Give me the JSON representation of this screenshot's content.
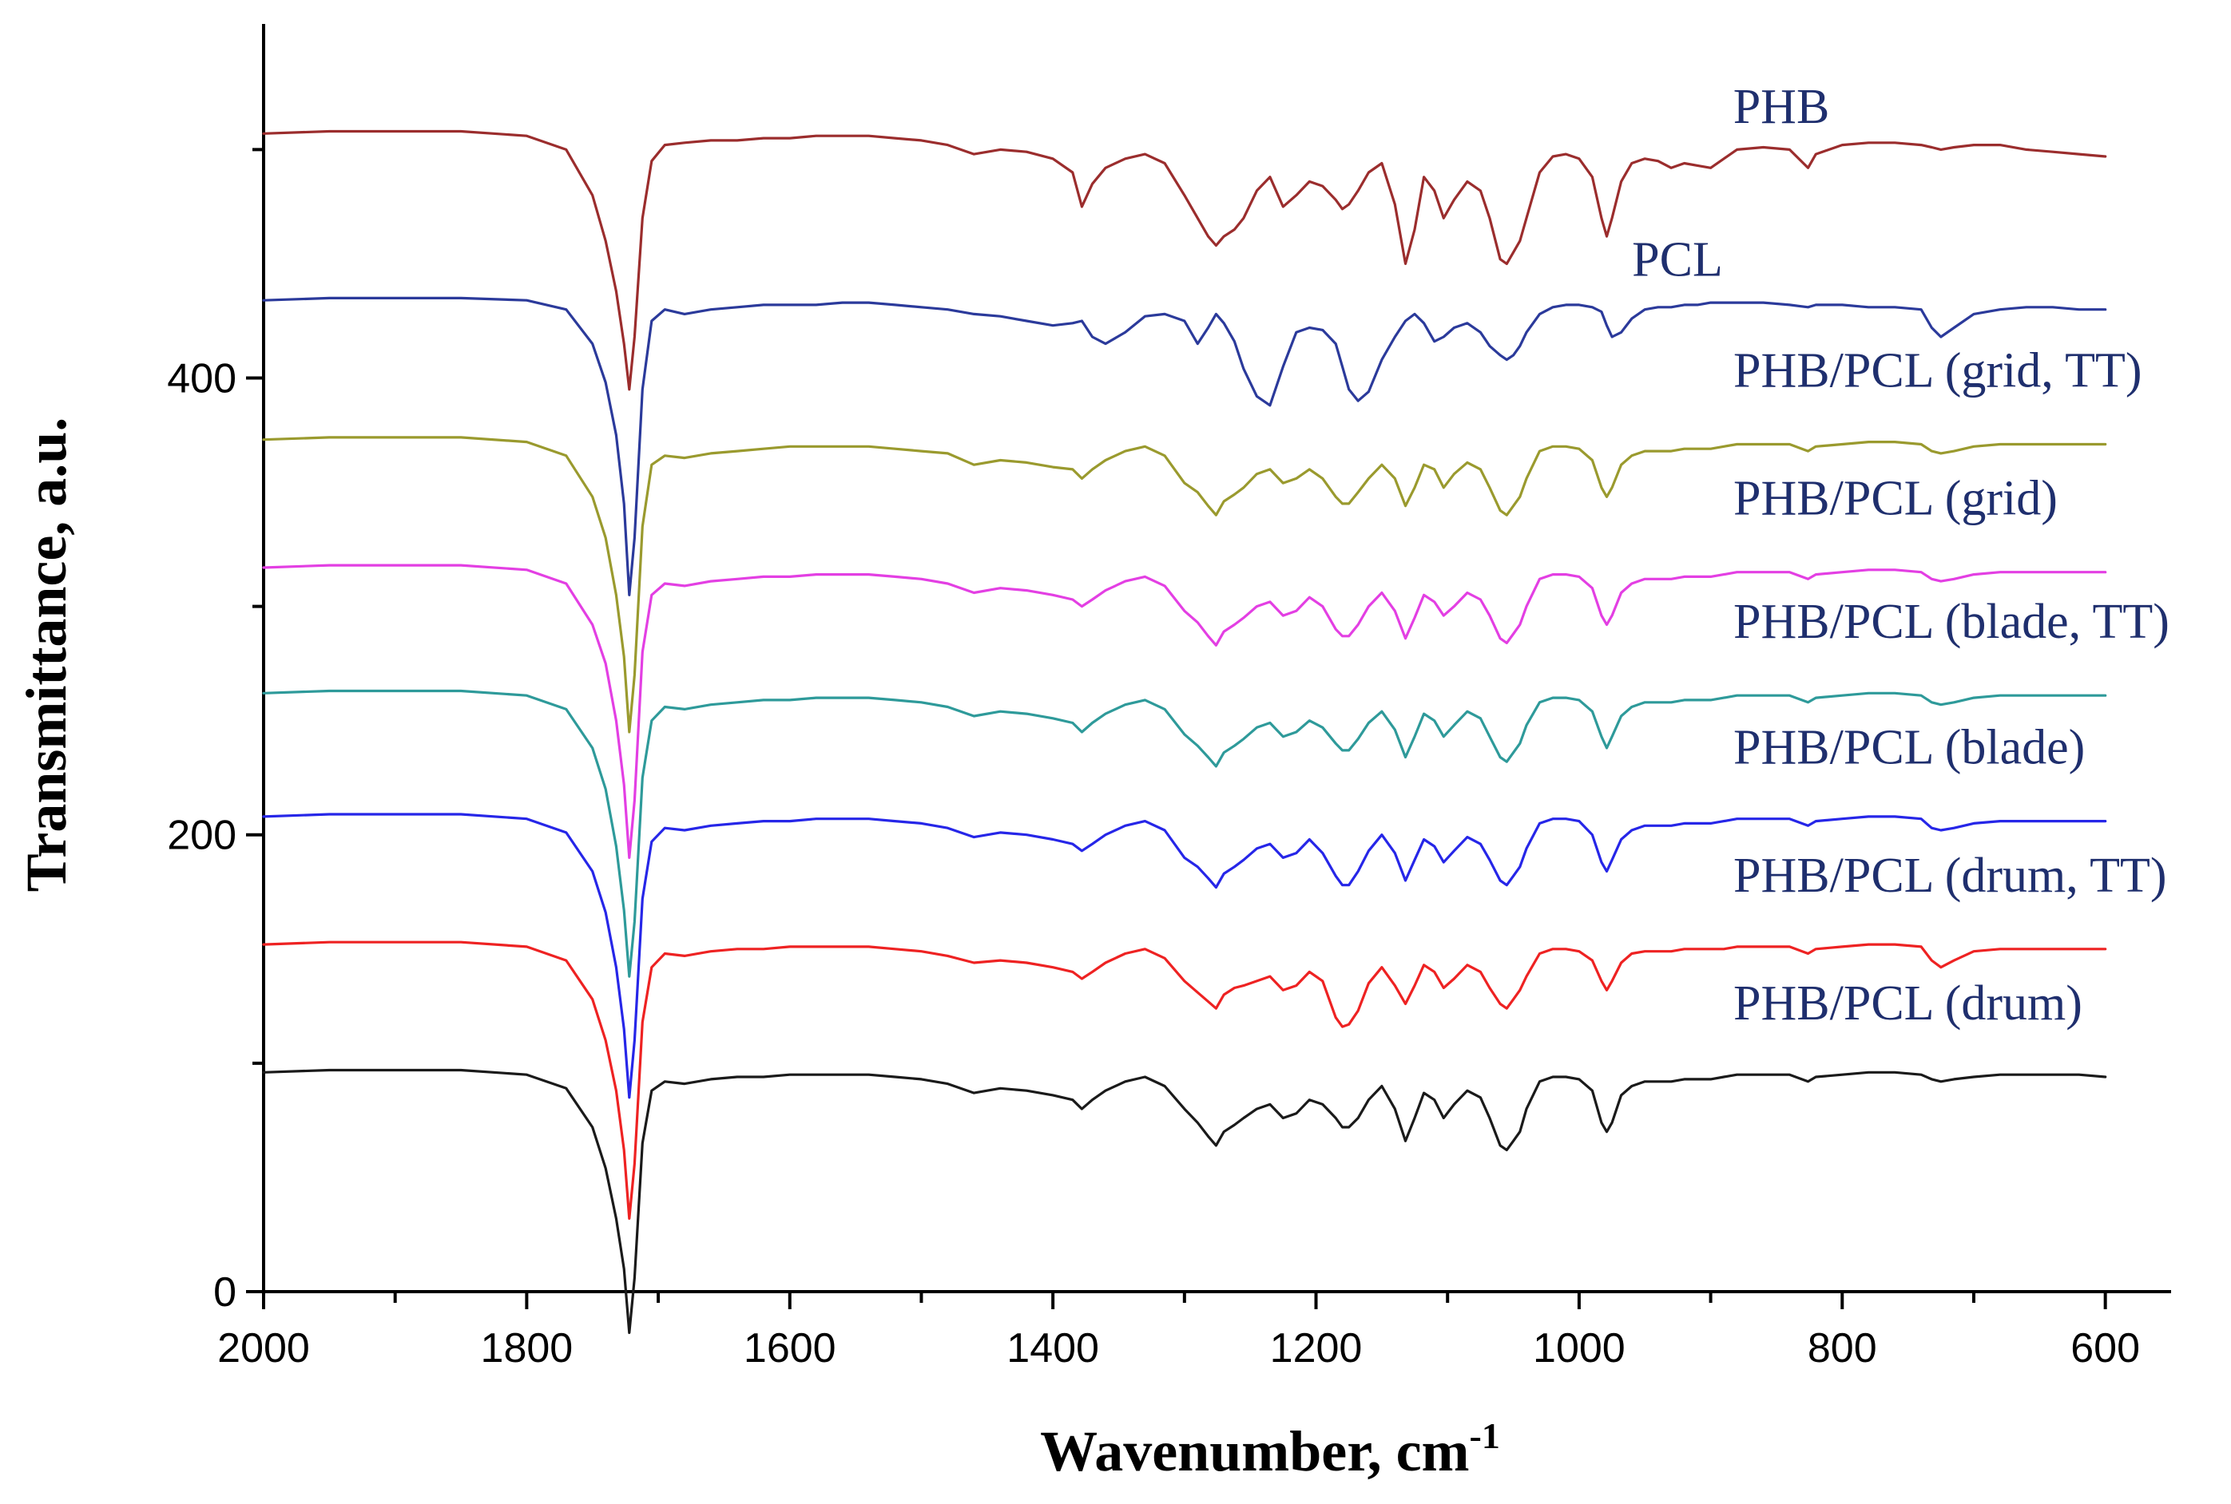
{
  "chart_data": {
    "type": "line",
    "title": "",
    "xlabel": "Wavenumber, cm",
    "xlabel_superscript": "-1",
    "ylabel": "Transmittance,  a.u.",
    "xlim": [
      2000,
      550
    ],
    "ylim": [
      0,
      555
    ],
    "x_ticks": [
      2000,
      1800,
      1600,
      1400,
      1200,
      1000,
      800,
      600
    ],
    "y_ticks": [
      0,
      200,
      400
    ],
    "x": [
      2000,
      1950,
      1900,
      1850,
      1800,
      1770,
      1750,
      1740,
      1732,
      1726,
      1722,
      1718,
      1712,
      1705,
      1695,
      1680,
      1660,
      1640,
      1620,
      1600,
      1580,
      1560,
      1540,
      1520,
      1500,
      1480,
      1460,
      1440,
      1420,
      1400,
      1385,
      1378,
      1370,
      1360,
      1345,
      1330,
      1315,
      1300,
      1290,
      1282,
      1276,
      1270,
      1262,
      1255,
      1245,
      1235,
      1225,
      1215,
      1205,
      1195,
      1185,
      1180,
      1175,
      1168,
      1160,
      1150,
      1140,
      1132,
      1125,
      1118,
      1110,
      1103,
      1095,
      1085,
      1075,
      1068,
      1060,
      1055,
      1050,
      1045,
      1040,
      1030,
      1020,
      1010,
      1000,
      990,
      983,
      979,
      975,
      968,
      960,
      950,
      940,
      930,
      920,
      910,
      900,
      890,
      880,
      860,
      840,
      826,
      820,
      800,
      780,
      760,
      740,
      732,
      725,
      715,
      700,
      680,
      660,
      640,
      620,
      600
    ],
    "series": [
      {
        "name": "PHB",
        "label": "PHB",
        "color": "#9b2d2d",
        "values": [
          507,
          508,
          508,
          508,
          506,
          500,
          480,
          460,
          438,
          415,
          395,
          418,
          470,
          495,
          502,
          503,
          504,
          504,
          505,
          505,
          506,
          506,
          506,
          505,
          504,
          502,
          498,
          500,
          499,
          496,
          490,
          475,
          485,
          492,
          496,
          498,
          494,
          480,
          470,
          462,
          458,
          462,
          465,
          470,
          482,
          488,
          475,
          480,
          486,
          484,
          478,
          474,
          476,
          482,
          490,
          494,
          476,
          450,
          465,
          488,
          482,
          470,
          478,
          486,
          482,
          470,
          452,
          450,
          455,
          460,
          470,
          490,
          497,
          498,
          496,
          488,
          470,
          462,
          470,
          486,
          494,
          496,
          495,
          492,
          494,
          493,
          492,
          496,
          500,
          501,
          500,
          492,
          498,
          502,
          503,
          503,
          502,
          501,
          500,
          501,
          502,
          502,
          500,
          499,
          498,
          497
        ]
      },
      {
        "name": "PCL",
        "label": "PCL",
        "color": "#2b3a9b",
        "values": [
          434,
          435,
          435,
          435,
          434,
          430,
          415,
          398,
          375,
          345,
          305,
          330,
          395,
          425,
          430,
          428,
          430,
          431,
          432,
          432,
          432,
          433,
          433,
          432,
          431,
          430,
          428,
          427,
          425,
          423,
          424,
          425,
          418,
          415,
          420,
          427,
          428,
          425,
          415,
          422,
          428,
          424,
          416,
          404,
          392,
          388,
          405,
          420,
          422,
          421,
          415,
          405,
          395,
          390,
          394,
          408,
          418,
          425,
          428,
          424,
          416,
          418,
          422,
          424,
          420,
          414,
          410,
          408,
          410,
          414,
          420,
          428,
          431,
          432,
          432,
          431,
          429,
          423,
          418,
          420,
          426,
          430,
          431,
          431,
          432,
          432,
          433,
          433,
          433,
          433,
          432,
          431,
          432,
          432,
          431,
          431,
          430,
          422,
          418,
          422,
          428,
          430,
          431,
          431,
          430,
          430
        ]
      },
      {
        "name": "PHB/PCL (grid, TT)",
        "label": "PHB/PCL (grid, TT)",
        "color": "#9a9a2e",
        "values": [
          373,
          374,
          374,
          374,
          372,
          366,
          348,
          330,
          305,
          278,
          245,
          270,
          335,
          362,
          366,
          365,
          367,
          368,
          369,
          370,
          370,
          370,
          370,
          369,
          368,
          367,
          362,
          364,
          363,
          361,
          360,
          356,
          360,
          364,
          368,
          370,
          366,
          354,
          350,
          344,
          340,
          346,
          349,
          352,
          358,
          360,
          354,
          356,
          360,
          356,
          348,
          345,
          345,
          350,
          356,
          362,
          356,
          344,
          352,
          362,
          360,
          352,
          358,
          363,
          360,
          352,
          342,
          340,
          344,
          348,
          356,
          368,
          370,
          370,
          369,
          364,
          352,
          348,
          352,
          362,
          366,
          368,
          368,
          368,
          369,
          369,
          369,
          370,
          371,
          371,
          371,
          368,
          370,
          371,
          372,
          372,
          371,
          368,
          367,
          368,
          370,
          371,
          371,
          371,
          371,
          371
        ]
      },
      {
        "name": "PHB/PCL (grid)",
        "label": "PHB/PCL (grid)",
        "color": "#e33fe3",
        "values": [
          317,
          318,
          318,
          318,
          316,
          310,
          292,
          275,
          250,
          222,
          190,
          215,
          280,
          305,
          310,
          309,
          311,
          312,
          313,
          313,
          314,
          314,
          314,
          313,
          312,
          310,
          306,
          308,
          307,
          305,
          303,
          300,
          303,
          307,
          311,
          313,
          309,
          298,
          293,
          287,
          283,
          289,
          292,
          295,
          300,
          302,
          296,
          298,
          304,
          300,
          290,
          287,
          287,
          292,
          300,
          306,
          298,
          286,
          295,
          305,
          302,
          296,
          300,
          306,
          303,
          296,
          286,
          284,
          288,
          292,
          300,
          312,
          314,
          314,
          313,
          308,
          296,
          292,
          296,
          306,
          310,
          312,
          312,
          312,
          313,
          313,
          313,
          314,
          315,
          315,
          315,
          312,
          314,
          315,
          316,
          316,
          315,
          312,
          311,
          312,
          314,
          315,
          315,
          315,
          315,
          315
        ]
      },
      {
        "name": "PHB/PCL (blade, TT)",
        "label": "PHB/PCL (blade, TT)",
        "color": "#2e9a9a",
        "values": [
          262,
          263,
          263,
          263,
          261,
          255,
          238,
          220,
          195,
          167,
          138,
          162,
          225,
          250,
          256,
          255,
          257,
          258,
          259,
          259,
          260,
          260,
          260,
          259,
          258,
          256,
          252,
          254,
          253,
          251,
          249,
          245,
          249,
          253,
          257,
          259,
          255,
          244,
          239,
          234,
          230,
          236,
          239,
          242,
          247,
          249,
          243,
          245,
          250,
          247,
          240,
          237,
          237,
          242,
          249,
          254,
          246,
          234,
          243,
          253,
          250,
          243,
          248,
          254,
          251,
          243,
          234,
          232,
          236,
          240,
          248,
          258,
          260,
          260,
          259,
          254,
          243,
          238,
          243,
          252,
          256,
          258,
          258,
          258,
          259,
          259,
          259,
          260,
          261,
          261,
          261,
          258,
          260,
          261,
          262,
          262,
          261,
          258,
          257,
          258,
          260,
          261,
          261,
          261,
          261,
          261
        ]
      },
      {
        "name": "PHB/PCL (blade)",
        "label": "PHB/PCL (blade)",
        "color": "#2626e8",
        "values": [
          208,
          209,
          209,
          209,
          207,
          201,
          184,
          166,
          142,
          115,
          85,
          110,
          172,
          197,
          203,
          202,
          204,
          205,
          206,
          206,
          207,
          207,
          207,
          206,
          205,
          203,
          199,
          201,
          200,
          198,
          196,
          193,
          196,
          200,
          204,
          206,
          202,
          190,
          186,
          181,
          177,
          183,
          186,
          189,
          194,
          196,
          190,
          192,
          198,
          192,
          182,
          178,
          178,
          184,
          193,
          200,
          192,
          180,
          189,
          198,
          195,
          188,
          193,
          199,
          196,
          189,
          180,
          178,
          182,
          186,
          194,
          205,
          207,
          207,
          206,
          200,
          188,
          184,
          189,
          198,
          202,
          204,
          204,
          204,
          205,
          205,
          205,
          206,
          207,
          207,
          207,
          204,
          206,
          207,
          208,
          208,
          207,
          203,
          202,
          203,
          205,
          206,
          206,
          206,
          206,
          206
        ]
      },
      {
        "name": "PHB/PCL (drum, TT)",
        "label": "PHB/PCL (drum, TT)",
        "color": "#ee2222",
        "values": [
          152,
          153,
          153,
          153,
          151,
          145,
          128,
          110,
          88,
          62,
          32,
          56,
          118,
          142,
          148,
          147,
          149,
          150,
          150,
          151,
          151,
          151,
          151,
          150,
          149,
          147,
          144,
          145,
          144,
          142,
          140,
          137,
          140,
          144,
          148,
          150,
          146,
          136,
          131,
          127,
          124,
          130,
          133,
          134,
          136,
          138,
          132,
          134,
          140,
          136,
          120,
          116,
          117,
          123,
          135,
          142,
          134,
          126,
          134,
          143,
          140,
          133,
          137,
          143,
          140,
          133,
          126,
          124,
          128,
          132,
          138,
          148,
          150,
          150,
          149,
          145,
          136,
          132,
          136,
          144,
          148,
          149,
          149,
          149,
          150,
          150,
          150,
          150,
          151,
          151,
          151,
          148,
          150,
          151,
          152,
          152,
          151,
          145,
          142,
          145,
          149,
          150,
          150,
          150,
          150,
          150
        ]
      },
      {
        "name": "PHB/PCL (drum)",
        "label": "PHB/PCL (drum)",
        "color": "#1a1a1a",
        "values": [
          96,
          97,
          97,
          97,
          95,
          89,
          72,
          54,
          32,
          10,
          -18,
          6,
          65,
          88,
          92,
          91,
          93,
          94,
          94,
          95,
          95,
          95,
          95,
          94,
          93,
          91,
          87,
          89,
          88,
          86,
          84,
          80,
          84,
          88,
          92,
          94,
          90,
          80,
          74,
          68,
          64,
          70,
          73,
          76,
          80,
          82,
          76,
          78,
          84,
          82,
          76,
          72,
          72,
          76,
          84,
          90,
          80,
          66,
          76,
          87,
          84,
          76,
          82,
          88,
          85,
          76,
          64,
          62,
          66,
          70,
          80,
          92,
          94,
          94,
          93,
          88,
          74,
          70,
          74,
          86,
          90,
          92,
          92,
          92,
          93,
          93,
          93,
          94,
          95,
          95,
          95,
          92,
          94,
          95,
          96,
          96,
          95,
          93,
          92,
          93,
          94,
          95,
          95,
          95,
          95,
          94
        ]
      }
    ]
  }
}
